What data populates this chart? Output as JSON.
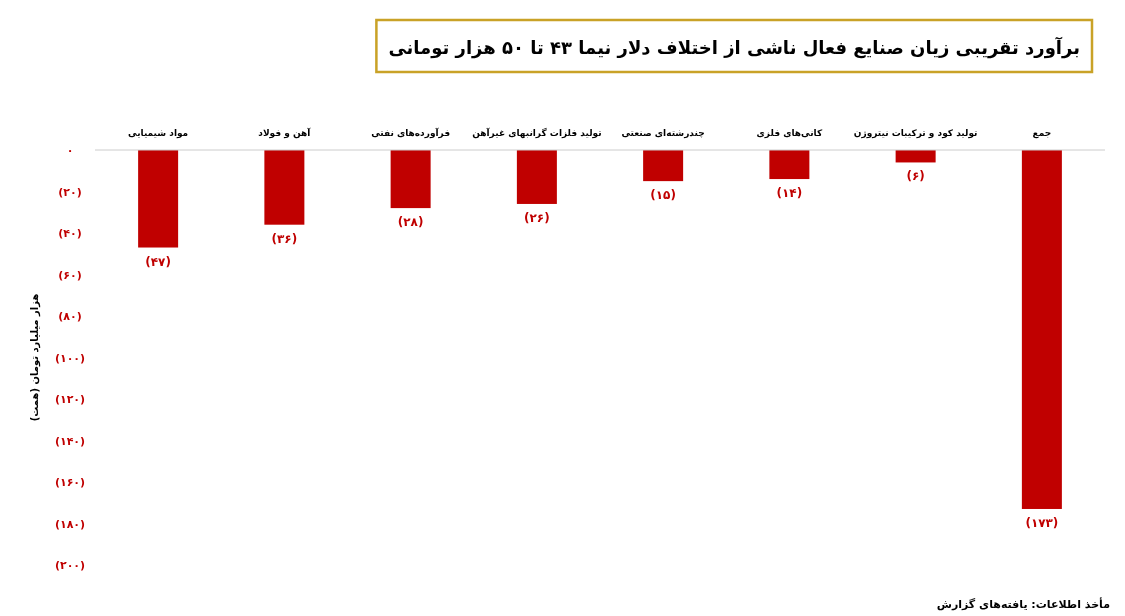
{
  "chart_data": {
    "type": "bar",
    "title": "برآورد تقریبی زیان صنایع فعال ناشی از اختلاف دلار نیما ۴۳ تا ۵۰ هزار تومانی",
    "ylabel": "هزار میلیارد تومان (همت)",
    "categories": [
      "مواد شیمیایی",
      "آهن و فولاد",
      "فرآورده‌های نفتی",
      "تولید فلزات گرانبهای غیرآهن",
      "چندرشته‌ای صنعتی",
      "کانی‌های فلزی",
      "تولید کود و ترکیبات نیتروژن",
      "جمع"
    ],
    "values": [
      -47,
      -36,
      -28,
      -26,
      -15,
      -14,
      -6,
      -173
    ],
    "value_labels": [
      "(۴۷)",
      "(۳۶)",
      "(۲۸)",
      "(۲۶)",
      "(۱۵)",
      "(۱۴)",
      "(۶)",
      "(۱۷۳)"
    ],
    "color": "#c00000",
    "ylim": [
      -200,
      0
    ],
    "yticks": [
      {
        "value": 0,
        "label": "۰"
      },
      {
        "value": -20,
        "label": "(۲۰)"
      },
      {
        "value": -40,
        "label": "(۴۰)"
      },
      {
        "value": -60,
        "label": "(۶۰)"
      },
      {
        "value": -80,
        "label": "(۸۰)"
      },
      {
        "value": -100,
        "label": "(۱۰۰)"
      },
      {
        "value": -120,
        "label": "(۱۲۰)"
      },
      {
        "value": -140,
        "label": "(۱۴۰)"
      },
      {
        "value": -160,
        "label": "(۱۶۰)"
      },
      {
        "value": -180,
        "label": "(۱۸۰)"
      },
      {
        "value": -200,
        "label": "(۲۰۰)"
      }
    ],
    "grid": false,
    "annotations": [
      "مأخذ اطلاعات: یافته‌های گزارش"
    ]
  }
}
